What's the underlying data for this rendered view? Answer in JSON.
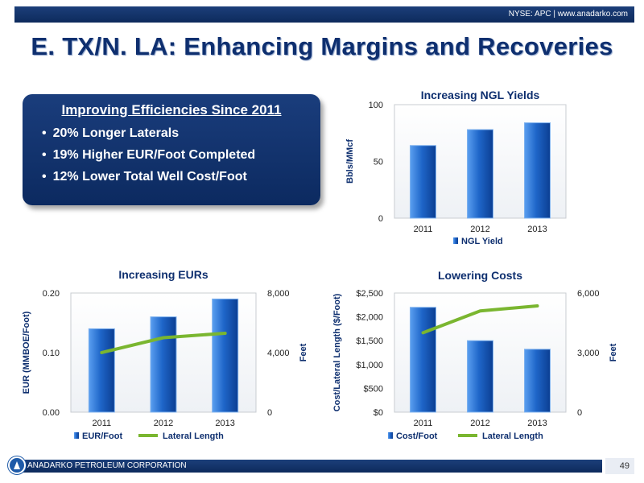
{
  "header": {
    "ticker": "NYSE: APC | www.anadarko.com"
  },
  "title": "E. TX/N. LA: Enhancing Margins and Recoveries",
  "efficiencies": {
    "heading": "Improving Efficiencies Since 2011",
    "items": [
      "20% Longer Laterals",
      "19% Higher EUR/Foot Completed",
      "12% Lower Total Well Cost/Foot"
    ]
  },
  "footer": {
    "company": "ANADARKO PETROLEUM CORPORATION",
    "page": "49"
  },
  "colors": {
    "bar": "#2c73d2",
    "line": "#7ab630",
    "navy": "#0e2f6f"
  },
  "chart_data": [
    {
      "type": "bar",
      "title": "Increasing NGL Yields",
      "categories": [
        "2011",
        "2012",
        "2013"
      ],
      "series": [
        {
          "name": "NGL Yield",
          "values": [
            64,
            78,
            84
          ]
        }
      ],
      "ylabel": "Bbls/MMcf",
      "ylim": [
        0,
        100
      ],
      "yticks": [
        "0",
        "50",
        "100"
      ],
      "legend": "bottom"
    },
    {
      "type": "bar",
      "title": "Increasing EURs",
      "categories": [
        "2011",
        "2012",
        "2013"
      ],
      "series": [
        {
          "name": "EUR/Foot",
          "values": [
            0.14,
            0.16,
            0.19
          ],
          "axis": "left",
          "kind": "bar"
        },
        {
          "name": "Lateral Length",
          "values": [
            4000,
            5000,
            5300
          ],
          "axis": "right",
          "kind": "line"
        }
      ],
      "ylabel": "EUR (MMBOE/Foot)",
      "ylim": [
        0,
        0.2
      ],
      "yticks": [
        "0.00",
        "0.10",
        "0.20"
      ],
      "y2label": "Feet",
      "y2lim": [
        0,
        8000
      ],
      "y2ticks": [
        "0",
        "4,000",
        "8,000"
      ],
      "legend": "bottom"
    },
    {
      "type": "bar",
      "title": "Lowering Costs",
      "categories": [
        "2011",
        "2012",
        "2013"
      ],
      "series": [
        {
          "name": "Cost/Foot",
          "values": [
            2200,
            1500,
            1320
          ],
          "axis": "left",
          "kind": "bar"
        },
        {
          "name": "Lateral Length",
          "values": [
            4000,
            5100,
            5350
          ],
          "axis": "right",
          "kind": "line"
        }
      ],
      "ylabel": "Cost/Lateral Length ($/Foot)",
      "ylim": [
        0,
        2500
      ],
      "yticks": [
        "$0",
        "$500",
        "$1,000",
        "$1,500",
        "$2,000",
        "$2,500"
      ],
      "y2label": "Feet",
      "y2lim": [
        0,
        6000
      ],
      "y2ticks": [
        "0",
        "3,000",
        "6,000"
      ],
      "legend": "bottom"
    }
  ]
}
